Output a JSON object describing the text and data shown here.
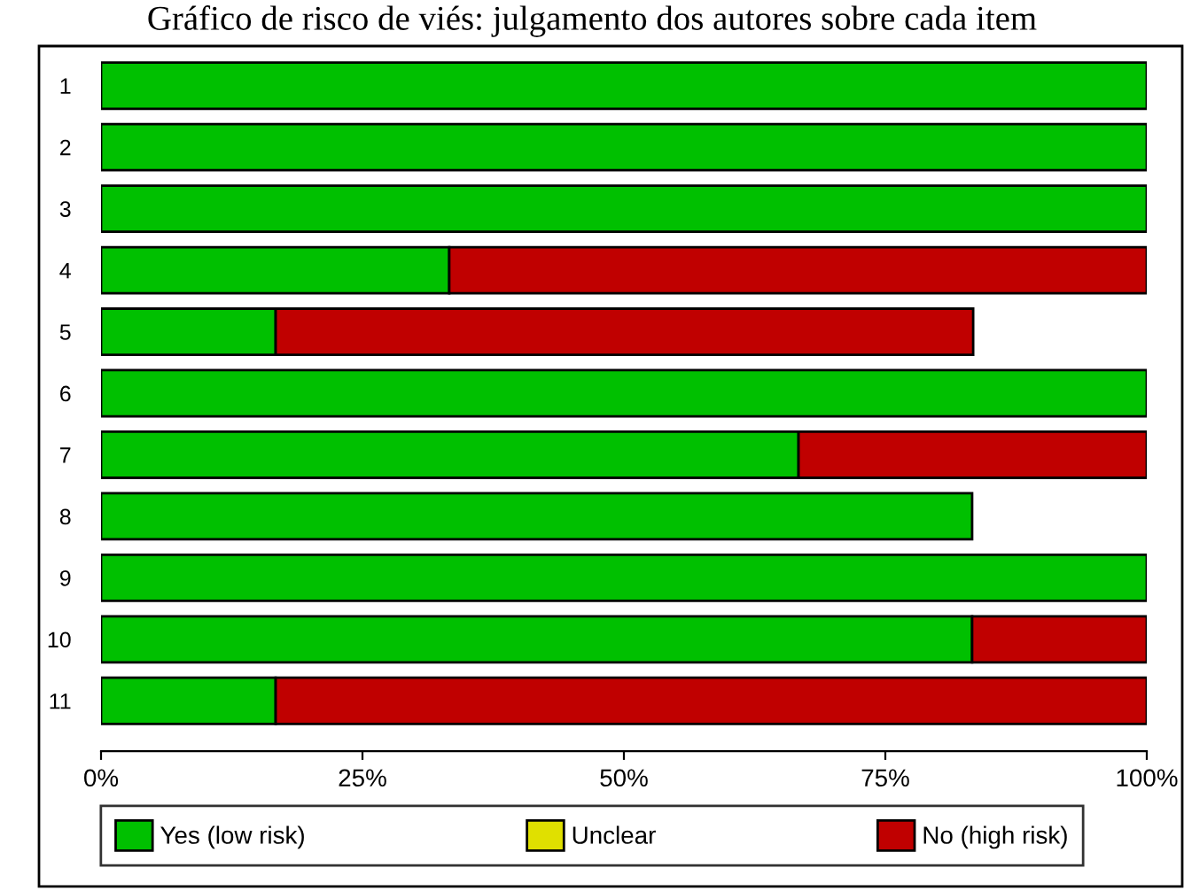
{
  "chart_data": {
    "type": "bar",
    "orientation": "horizontal",
    "stacked": true,
    "title": "Gráfico de risco de viés: julgamento dos autores sobre cada item",
    "categories": [
      "1",
      "2",
      "3",
      "4",
      "5",
      "6",
      "7",
      "8",
      "9",
      "10",
      "11"
    ],
    "series": [
      {
        "name": "Yes (low risk)",
        "color": "#00c000",
        "values": [
          100,
          100,
          100,
          33.3,
          16.7,
          100,
          66.7,
          83.3,
          100,
          83.3,
          16.7
        ]
      },
      {
        "name": "Unclear",
        "color": "#e0e000",
        "values": [
          null,
          null,
          null,
          null,
          null,
          null,
          null,
          null,
          null,
          null,
          null
        ]
      },
      {
        "name": "No (high risk)",
        "color": "#c00000",
        "values": [
          0,
          0,
          0,
          66.7,
          66.7,
          0,
          33.3,
          0,
          0,
          16.7,
          83.3
        ]
      }
    ],
    "xlim": [
      0,
      100
    ],
    "xticks": [
      {
        "value": 0,
        "label": "0%"
      },
      {
        "value": 25,
        "label": "25%"
      },
      {
        "value": 50,
        "label": "50%"
      },
      {
        "value": 75,
        "label": "75%"
      },
      {
        "value": 100,
        "label": "100%"
      }
    ],
    "legend": "bottom",
    "grid": false
  }
}
